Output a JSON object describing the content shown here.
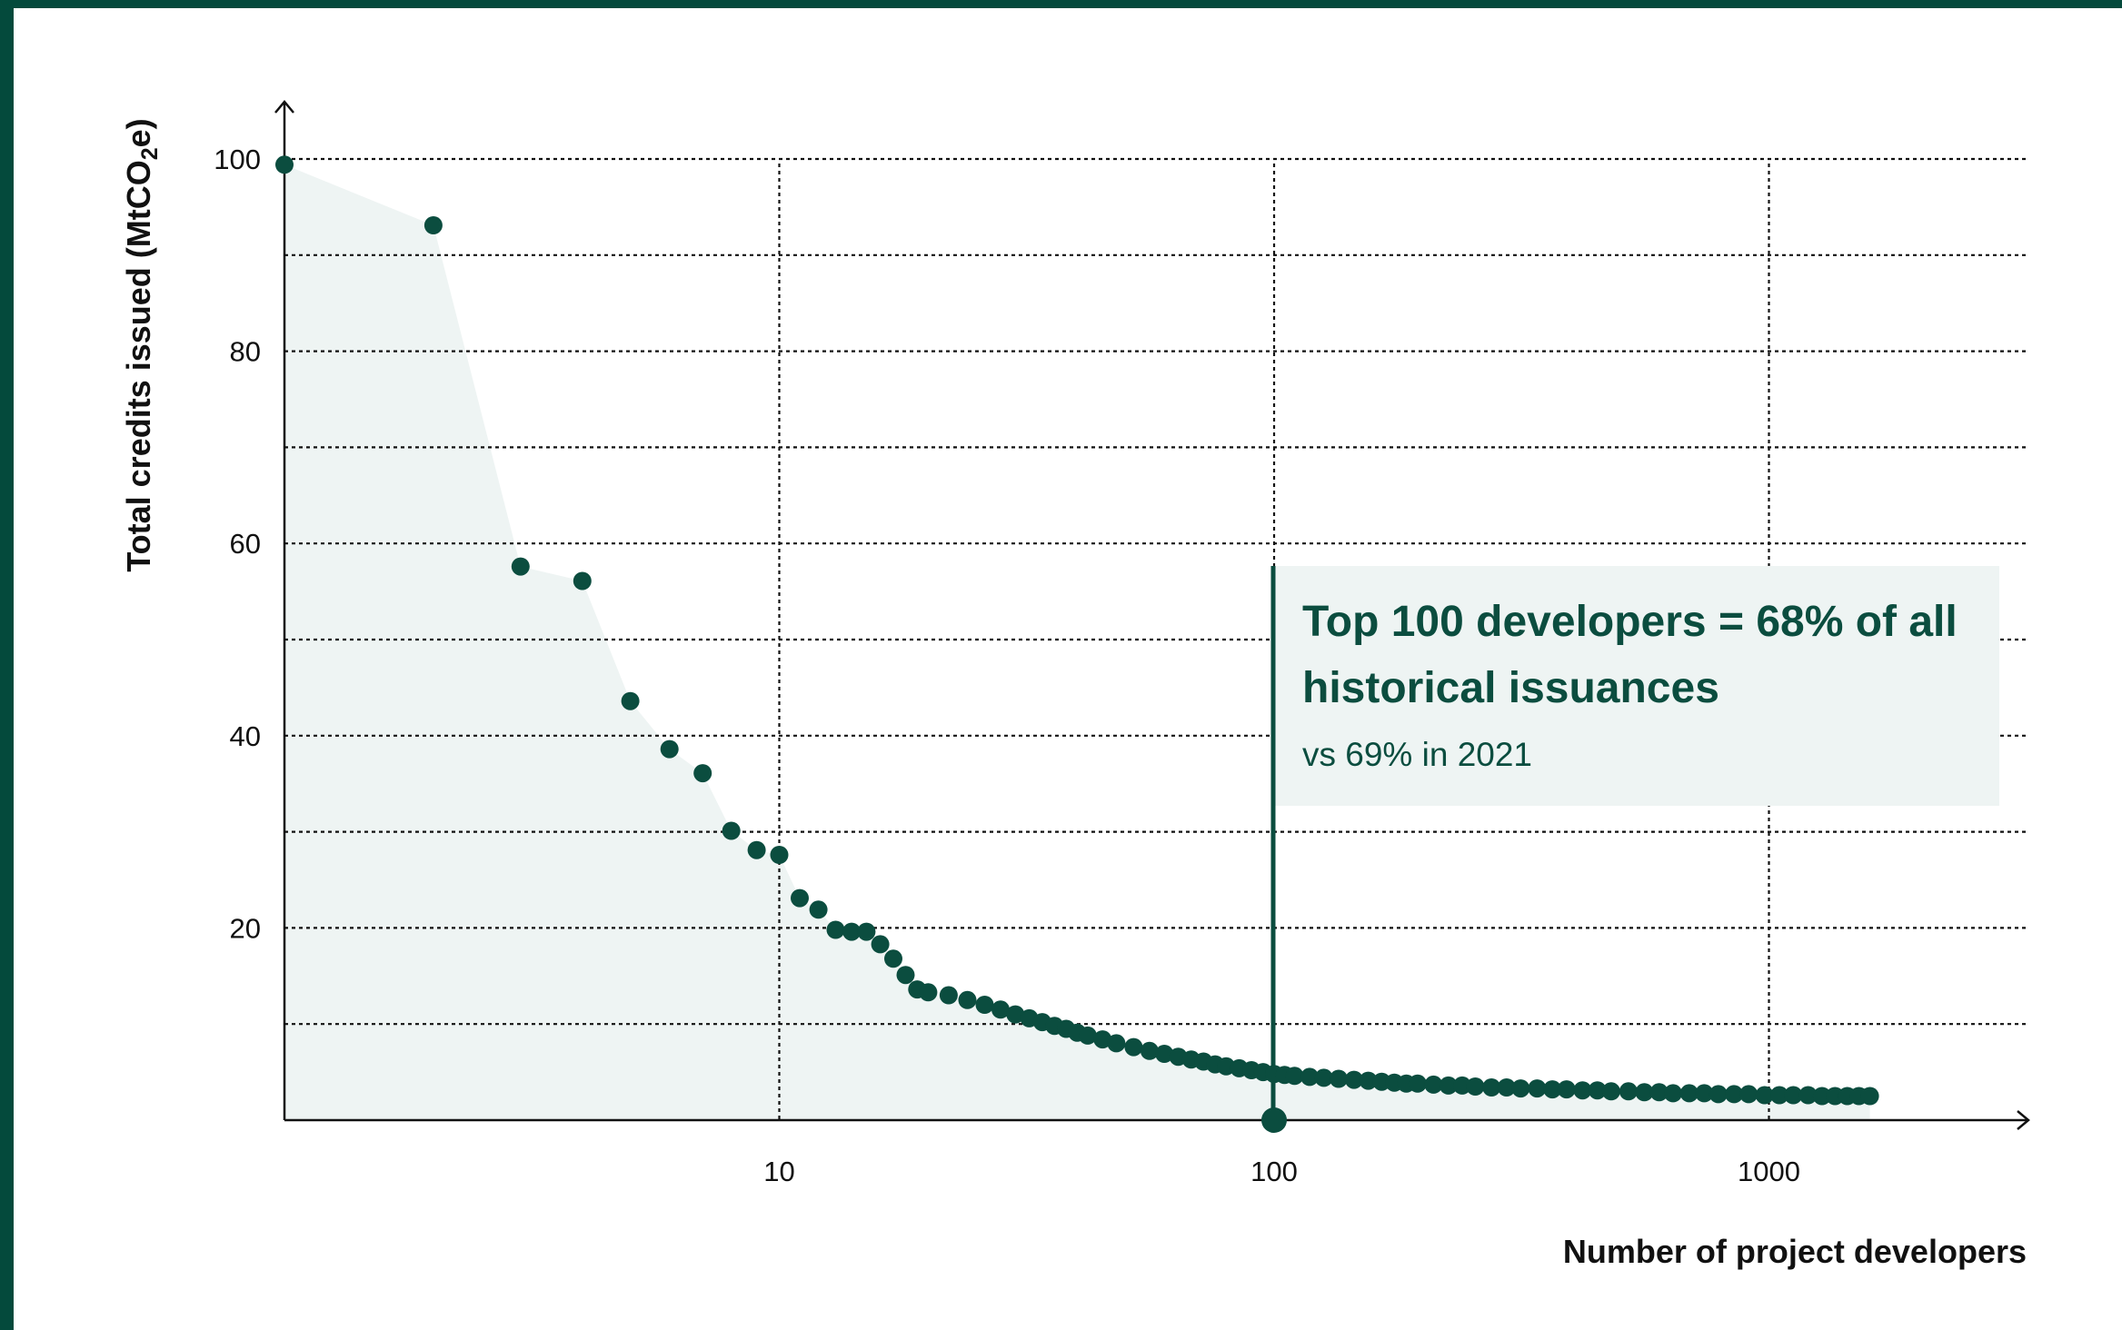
{
  "colors": {
    "frame": "#044a3c",
    "marker": "#0b4d3f",
    "area_fill": "#eef4f3",
    "annotation_bg": "#eef4f3",
    "grid": "#111111"
  },
  "chart_data": {
    "type": "scatter",
    "title": "",
    "xlabel": "Number of project developers",
    "ylabel_main": "Total credits issued (MtCO",
    "ylabel_sub": "2",
    "ylabel_end": "e)",
    "x_scale": "log",
    "xlim": [
      1,
      3100
    ],
    "ylim": [
      0,
      105
    ],
    "x_ticks": [
      10,
      100,
      1000
    ],
    "x_tick_labels": [
      "10",
      "100",
      "1000"
    ],
    "y_ticks": [
      20,
      40,
      60,
      80,
      100
    ],
    "y_tick_labels": [
      "20",
      "40",
      "60",
      "80",
      "100"
    ],
    "y_gridlines": [
      10,
      20,
      30,
      40,
      50,
      60,
      70,
      80,
      90,
      100
    ],
    "grid": "dotted",
    "area_under_curve": true,
    "highlight_x": 100,
    "annotation": {
      "title_line1": "Top 100 developers = 68% of all",
      "title_line2": "historical issuances",
      "subtitle": "vs 69% in 2021"
    },
    "series": [
      {
        "points": [
          [
            1,
            99.4
          ],
          [
            2,
            93.1
          ],
          [
            3,
            57.6
          ],
          [
            4,
            56.1
          ],
          [
            5,
            43.6
          ],
          [
            6,
            38.6
          ],
          [
            7,
            36.1
          ],
          [
            8,
            30.1
          ],
          [
            9,
            28.1
          ],
          [
            10,
            27.6
          ],
          [
            11,
            23.1
          ],
          [
            12,
            21.9
          ],
          [
            13,
            19.8
          ],
          [
            14,
            19.6
          ],
          [
            15,
            19.6
          ],
          [
            16,
            18.3
          ],
          [
            17,
            16.8
          ],
          [
            18,
            15.1
          ],
          [
            19,
            13.6
          ],
          [
            20,
            13.3
          ],
          [
            22,
            13.0
          ],
          [
            24,
            12.5
          ],
          [
            26,
            12.0
          ],
          [
            28,
            11.5
          ],
          [
            30,
            11.0
          ],
          [
            32,
            10.6
          ],
          [
            34,
            10.2
          ],
          [
            36,
            9.8
          ],
          [
            38,
            9.5
          ],
          [
            40,
            9.1
          ],
          [
            42,
            8.8
          ],
          [
            45,
            8.4
          ],
          [
            48,
            8.0
          ],
          [
            52,
            7.6
          ],
          [
            56,
            7.2
          ],
          [
            60,
            6.9
          ],
          [
            64,
            6.6
          ],
          [
            68,
            6.3
          ],
          [
            72,
            6.1
          ],
          [
            76,
            5.8
          ],
          [
            80,
            5.6
          ],
          [
            85,
            5.4
          ],
          [
            90,
            5.2
          ],
          [
            95,
            5.0
          ],
          [
            100,
            4.8
          ],
          [
            105,
            4.7
          ],
          [
            110,
            4.6
          ],
          [
            118,
            4.5
          ],
          [
            126,
            4.4
          ],
          [
            135,
            4.3
          ],
          [
            145,
            4.2
          ],
          [
            155,
            4.1
          ],
          [
            165,
            4.0
          ],
          [
            175,
            3.9
          ],
          [
            185,
            3.8
          ],
          [
            195,
            3.8
          ],
          [
            210,
            3.7
          ],
          [
            225,
            3.6
          ],
          [
            240,
            3.6
          ],
          [
            255,
            3.5
          ],
          [
            275,
            3.4
          ],
          [
            295,
            3.4
          ],
          [
            315,
            3.3
          ],
          [
            340,
            3.3
          ],
          [
            365,
            3.2
          ],
          [
            390,
            3.2
          ],
          [
            420,
            3.1
          ],
          [
            450,
            3.1
          ],
          [
            480,
            3.0
          ],
          [
            520,
            3.0
          ],
          [
            560,
            2.9
          ],
          [
            600,
            2.9
          ],
          [
            640,
            2.8
          ],
          [
            690,
            2.8
          ],
          [
            740,
            2.8
          ],
          [
            790,
            2.7
          ],
          [
            850,
            2.7
          ],
          [
            910,
            2.7
          ],
          [
            980,
            2.6
          ],
          [
            1050,
            2.6
          ],
          [
            1120,
            2.6
          ],
          [
            1200,
            2.6
          ],
          [
            1280,
            2.5
          ],
          [
            1360,
            2.5
          ],
          [
            1440,
            2.5
          ],
          [
            1520,
            2.5
          ],
          [
            1600,
            2.5
          ]
        ]
      }
    ]
  }
}
